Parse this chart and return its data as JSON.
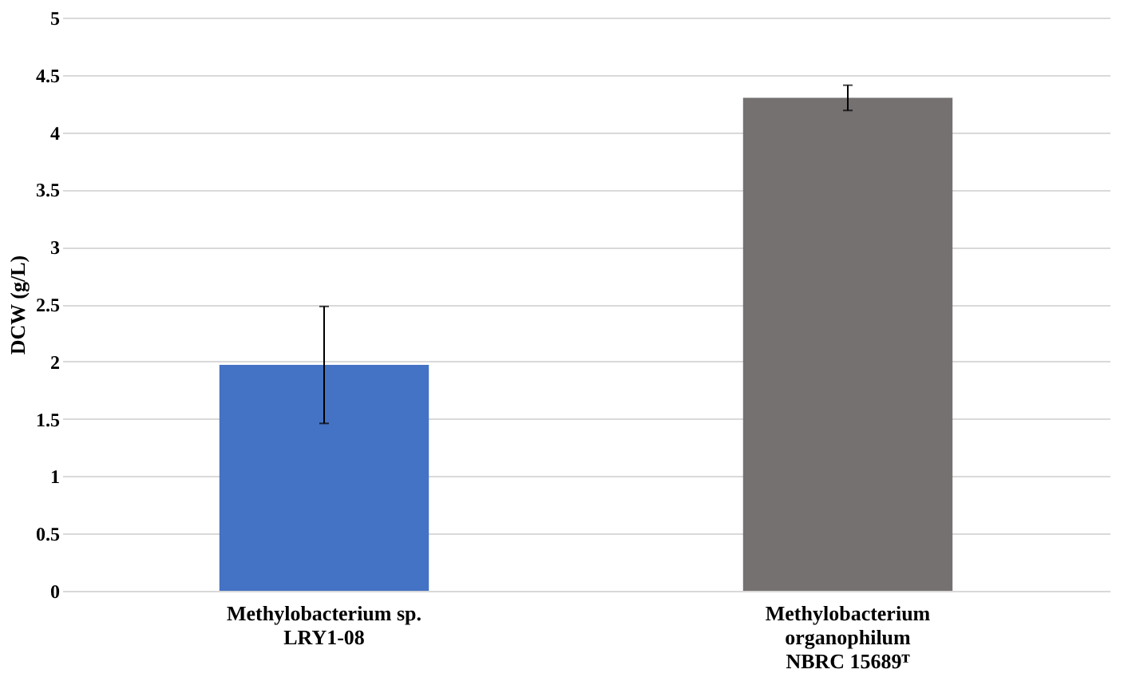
{
  "chart_data": {
    "type": "bar",
    "ylabel": "DCW (g/L)",
    "categories": [
      "Methylobacterium sp.\nLRY1-08",
      "Methylobacterium\norganophilum\nNBRC 15689ᵀ"
    ],
    "values": [
      1.97,
      4.3
    ],
    "colors": [
      "#4472c4",
      "#767171"
    ],
    "errors": [
      0.51,
      0.11
    ],
    "ylim": [
      0,
      5
    ],
    "yticks": [
      0,
      0.5,
      1,
      1.5,
      2,
      2.5,
      3,
      3.5,
      4,
      4.5,
      5
    ],
    "grid": "y"
  }
}
